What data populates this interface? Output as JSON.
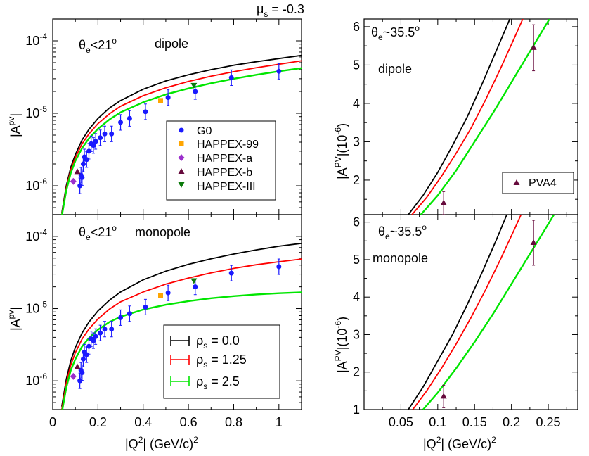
{
  "header": {
    "mu_s": "μ",
    "mu_sub": "s",
    "mu_value": " = -0.3"
  },
  "colors": {
    "rho0": "#000000",
    "rho125": "#ff0000",
    "rho25": "#00e600",
    "g0": "#1a1aff",
    "happex99": "#ffa500",
    "happexa": "#9b30cc",
    "happexb": "#660a3c",
    "happex3": "#0a7a0a",
    "pva4": "#660a3c"
  },
  "labels": {
    "theta": "θ",
    "e": "e",
    "lt21": "<21",
    "approx355": "~35.5",
    "deg": "o",
    "dipole": "dipole",
    "monopole": "monopole",
    "apv_left": "|A",
    "apv_sup": "pv",
    "apv_close": "|",
    "apv_right": "|A",
    "apv_right_sup": "PV",
    "apv_right_tail": "|(10",
    "apv_right_exp": "-6",
    "apv_right_paren": ")",
    "q2_left": "|Q",
    "q2_sup": "2",
    "q2_mid": "| (GeV/c)",
    "q2_sup2": "2"
  },
  "legend_left": [
    "G0",
    "HAPPEX-99",
    "HAPPEX-a",
    "HAPPEX-b",
    "HAPPEX-III"
  ],
  "legend_rho": [
    {
      "sym": "ρ",
      "sub": "s",
      "val": " = 0.0"
    },
    {
      "sym": "ρ",
      "sub": "s",
      "val": " = 1.25"
    },
    {
      "sym": "ρ",
      "sub": "s",
      "val": " = 2.5"
    }
  ],
  "legend_right": [
    "PVA4"
  ],
  "ticks": {
    "left_x": [
      "0",
      "0.2",
      "0.4",
      "0.6",
      "0.8",
      "1"
    ],
    "right_x": [
      "0.05",
      "0.1",
      "0.15",
      "0.2",
      "0.25"
    ],
    "log_y_base": "10",
    "log_y_exps": [
      "-6",
      "-5",
      "-4"
    ],
    "right_y": [
      "2",
      "3",
      "4",
      "5",
      "6"
    ],
    "right_y_bottom": [
      "1",
      "2",
      "3",
      "4",
      "5",
      "6"
    ]
  },
  "chart_data": [
    {
      "type": "scatter",
      "title": "θe<21o dipole",
      "xlabel": "|Q2| (GeV/c)2",
      "ylabel": "|Apv|",
      "xlim": [
        0,
        1.1
      ],
      "ylim": [
        4e-07,
        0.0002
      ],
      "yscale": "log",
      "curves": {
        "rho_0.0": {
          "x": [
            0.04,
            0.06,
            0.08,
            0.1,
            0.13,
            0.16,
            0.2,
            0.25,
            0.3,
            0.4,
            0.5,
            0.6,
            0.7,
            0.8,
            0.9,
            1.0,
            1.1
          ],
          "y": [
            4.2e-07,
            1e-06,
            1.8e-06,
            2.7e-06,
            4.3e-06,
            6e-06,
            8.5e-06,
            1.18e-05,
            1.5e-05,
            2.15e-05,
            2.8e-05,
            3.4e-05,
            4e-05,
            4.6e-05,
            5.15e-05,
            5.7e-05,
            6.3e-05
          ]
        },
        "rho_1.25": {
          "x": [
            0.04,
            0.06,
            0.08,
            0.1,
            0.13,
            0.16,
            0.2,
            0.25,
            0.3,
            0.4,
            0.5,
            0.6,
            0.7,
            0.8,
            0.9,
            1.0,
            1.1
          ],
          "y": [
            4e-07,
            9.3e-07,
            1.65e-06,
            2.45e-06,
            3.8e-06,
            5.2e-06,
            7.2e-06,
            9.8e-06,
            1.25e-05,
            1.75e-05,
            2.25e-05,
            2.75e-05,
            3.25e-05,
            3.75e-05,
            4.25e-05,
            4.75e-05,
            5.3e-05
          ]
        },
        "rho_2.5": {
          "x": [
            0.04,
            0.06,
            0.08,
            0.1,
            0.13,
            0.16,
            0.2,
            0.25,
            0.3,
            0.4,
            0.5,
            0.6,
            0.7,
            0.8,
            0.9,
            1.0,
            1.1
          ],
          "y": [
            3.8e-07,
            8.6e-07,
            1.5e-06,
            2.2e-06,
            3.3e-06,
            4.5e-06,
            6.1e-06,
            8.2e-06,
            1.03e-05,
            1.42e-05,
            1.82e-05,
            2.2e-05,
            2.6e-05,
            3e-05,
            3.4e-05,
            3.8e-05,
            4.2e-05
          ]
        }
      },
      "points": {
        "G0": [
          [
            0.12,
            1e-06
          ],
          [
            0.125,
            1.4e-06
          ],
          [
            0.13,
            1.3e-06
          ],
          [
            0.135,
            2e-06
          ],
          [
            0.14,
            2.5e-06
          ],
          [
            0.15,
            2.3e-06
          ],
          [
            0.16,
            3e-06
          ],
          [
            0.17,
            3.8e-06
          ],
          [
            0.18,
            3.6e-06
          ],
          [
            0.19,
            4.1e-06
          ],
          [
            0.21,
            4.6e-06
          ],
          [
            0.23,
            5.2e-06
          ],
          [
            0.26,
            5.2e-06
          ],
          [
            0.3,
            7.5e-06
          ],
          [
            0.34,
            8.5e-06
          ],
          [
            0.41,
            1.05e-05
          ],
          [
            0.51,
            1.65e-05
          ],
          [
            0.63,
            2e-05
          ],
          [
            0.79,
            3.1e-05
          ],
          [
            1.0,
            3.8e-05
          ]
        ],
        "HAPPEX-99": [
          [
            0.477,
            1.5e-05
          ]
        ],
        "HAPPEX-a": [
          [
            0.091,
            1.15e-06
          ]
        ],
        "HAPPEX-b": [
          [
            0.109,
            1.55e-06
          ]
        ],
        "HAPPEX-III": [
          [
            0.624,
            2.4e-05
          ]
        ]
      }
    },
    {
      "type": "scatter",
      "title": "θe<21o monopole",
      "xlabel": "|Q2| (GeV/c)2",
      "ylabel": "|Apv|",
      "xlim": [
        0,
        1.1
      ],
      "ylim": [
        4e-07,
        0.0002
      ],
      "yscale": "log",
      "curves": {
        "rho_0.0": {
          "x": [
            0.04,
            0.06,
            0.08,
            0.1,
            0.13,
            0.16,
            0.2,
            0.25,
            0.3,
            0.4,
            0.5,
            0.6,
            0.7,
            0.8,
            0.9,
            1.0,
            1.1
          ],
          "y": [
            4.4e-07,
            1.05e-06,
            1.9e-06,
            2.9e-06,
            4.6e-06,
            6.5e-06,
            9.3e-06,
            1.3e-05,
            1.7e-05,
            2.5e-05,
            3.3e-05,
            4.1e-05,
            4.9e-05,
            5.7e-05,
            6.5e-05,
            7.3e-05,
            8e-05
          ]
        },
        "rho_1.25": {
          "x": [
            0.04,
            0.06,
            0.08,
            0.1,
            0.13,
            0.16,
            0.2,
            0.25,
            0.3,
            0.4,
            0.5,
            0.6,
            0.7,
            0.8,
            0.9,
            1.0,
            1.1
          ],
          "y": [
            4e-07,
            9.3e-07,
            1.65e-06,
            2.45e-06,
            3.8e-06,
            5.2e-06,
            7.2e-06,
            9.8e-06,
            1.24e-05,
            1.7e-05,
            2.18e-05,
            2.65e-05,
            3.12e-05,
            3.6e-05,
            4.05e-05,
            4.45e-05,
            4.85e-05
          ]
        },
        "rho_2.5": {
          "x": [
            0.04,
            0.06,
            0.08,
            0.1,
            0.13,
            0.16,
            0.2,
            0.25,
            0.3,
            0.4,
            0.5,
            0.6,
            0.7,
            0.8,
            0.9,
            1.0,
            1.1
          ],
          "y": [
            3.6e-07,
            8e-07,
            1.4e-06,
            2e-06,
            3e-06,
            3.9e-06,
            5.1e-06,
            6.5e-06,
            7.7e-06,
            9.7e-06,
            1.13e-05,
            1.27e-05,
            1.39e-05,
            1.49e-05,
            1.57e-05,
            1.63e-05,
            1.68e-05
          ]
        }
      },
      "points": {
        "G0": [
          [
            0.12,
            1e-06
          ],
          [
            0.125,
            1.4e-06
          ],
          [
            0.13,
            1.3e-06
          ],
          [
            0.135,
            2e-06
          ],
          [
            0.14,
            2.5e-06
          ],
          [
            0.15,
            2.3e-06
          ],
          [
            0.16,
            3e-06
          ],
          [
            0.17,
            3.8e-06
          ],
          [
            0.18,
            3.6e-06
          ],
          [
            0.19,
            4.1e-06
          ],
          [
            0.21,
            4.6e-06
          ],
          [
            0.23,
            5.2e-06
          ],
          [
            0.26,
            5.2e-06
          ],
          [
            0.3,
            7.5e-06
          ],
          [
            0.34,
            8.5e-06
          ],
          [
            0.41,
            1.05e-05
          ],
          [
            0.51,
            1.65e-05
          ],
          [
            0.63,
            2e-05
          ],
          [
            0.79,
            3.1e-05
          ],
          [
            1.0,
            3.8e-05
          ]
        ],
        "HAPPEX-99": [
          [
            0.477,
            1.5e-05
          ]
        ],
        "HAPPEX-a": [
          [
            0.091,
            1.15e-06
          ]
        ],
        "HAPPEX-b": [
          [
            0.109,
            1.55e-06
          ]
        ],
        "HAPPEX-III": [
          [
            0.624,
            2.4e-05
          ]
        ]
      }
    },
    {
      "type": "line",
      "title": "θe~35.5o dipole",
      "xlabel": "",
      "ylabel": "|APV|(10-6)",
      "xlim": [
        0,
        0.29
      ],
      "ylim": [
        1.1,
        6.2
      ],
      "curves": {
        "rho_0.0": {
          "x": [
            0.06,
            0.08,
            0.1,
            0.12,
            0.14,
            0.16,
            0.18,
            0.2
          ],
          "y": [
            1.1,
            1.6,
            2.2,
            2.9,
            3.65,
            4.5,
            5.4,
            6.3
          ]
        },
        "rho_1.25": {
          "x": [
            0.065,
            0.085,
            0.105,
            0.125,
            0.145,
            0.165,
            0.185,
            0.205,
            0.22
          ],
          "y": [
            1.1,
            1.55,
            2.1,
            2.7,
            3.35,
            4.1,
            4.9,
            5.75,
            6.4
          ]
        },
        "rho_2.5": {
          "x": [
            0.077,
            0.1,
            0.125,
            0.15,
            0.175,
            0.2,
            0.225,
            0.25,
            0.27
          ],
          "y": [
            1.1,
            1.6,
            2.25,
            3.0,
            3.75,
            4.55,
            5.35,
            6.15,
            6.8
          ]
        }
      },
      "points": {
        "PVA4": [
          [
            0.108,
            1.4,
            0.3
          ],
          [
            0.23,
            5.45,
            0.6
          ]
        ]
      }
    },
    {
      "type": "line",
      "title": "θe~35.5o monopole",
      "xlabel": "|Q2| (GeV/c)2",
      "ylabel": "|APV|(10-6)",
      "xlim": [
        0,
        0.29
      ],
      "ylim": [
        1.0,
        6.2
      ],
      "curves": {
        "rho_0.0": {
          "x": [
            0.06,
            0.08,
            0.1,
            0.12,
            0.14,
            0.16,
            0.18,
            0.2
          ],
          "y": [
            1.0,
            1.6,
            2.3,
            3.0,
            3.8,
            4.65,
            5.55,
            6.5
          ]
        },
        "rho_1.25": {
          "x": [
            0.066,
            0.085,
            0.105,
            0.125,
            0.145,
            0.165,
            0.185,
            0.205,
            0.22
          ],
          "y": [
            1.0,
            1.5,
            2.1,
            2.75,
            3.45,
            4.2,
            5.0,
            5.85,
            6.5
          ]
        },
        "rho_2.5": {
          "x": [
            0.08,
            0.1,
            0.125,
            0.15,
            0.175,
            0.2,
            0.225,
            0.25,
            0.27
          ],
          "y": [
            1.0,
            1.45,
            2.1,
            2.8,
            3.55,
            4.35,
            5.15,
            5.95,
            6.6
          ]
        }
      },
      "points": {
        "PVA4": [
          [
            0.108,
            1.35,
            0.3
          ],
          [
            0.23,
            5.45,
            0.6
          ]
        ]
      }
    }
  ]
}
